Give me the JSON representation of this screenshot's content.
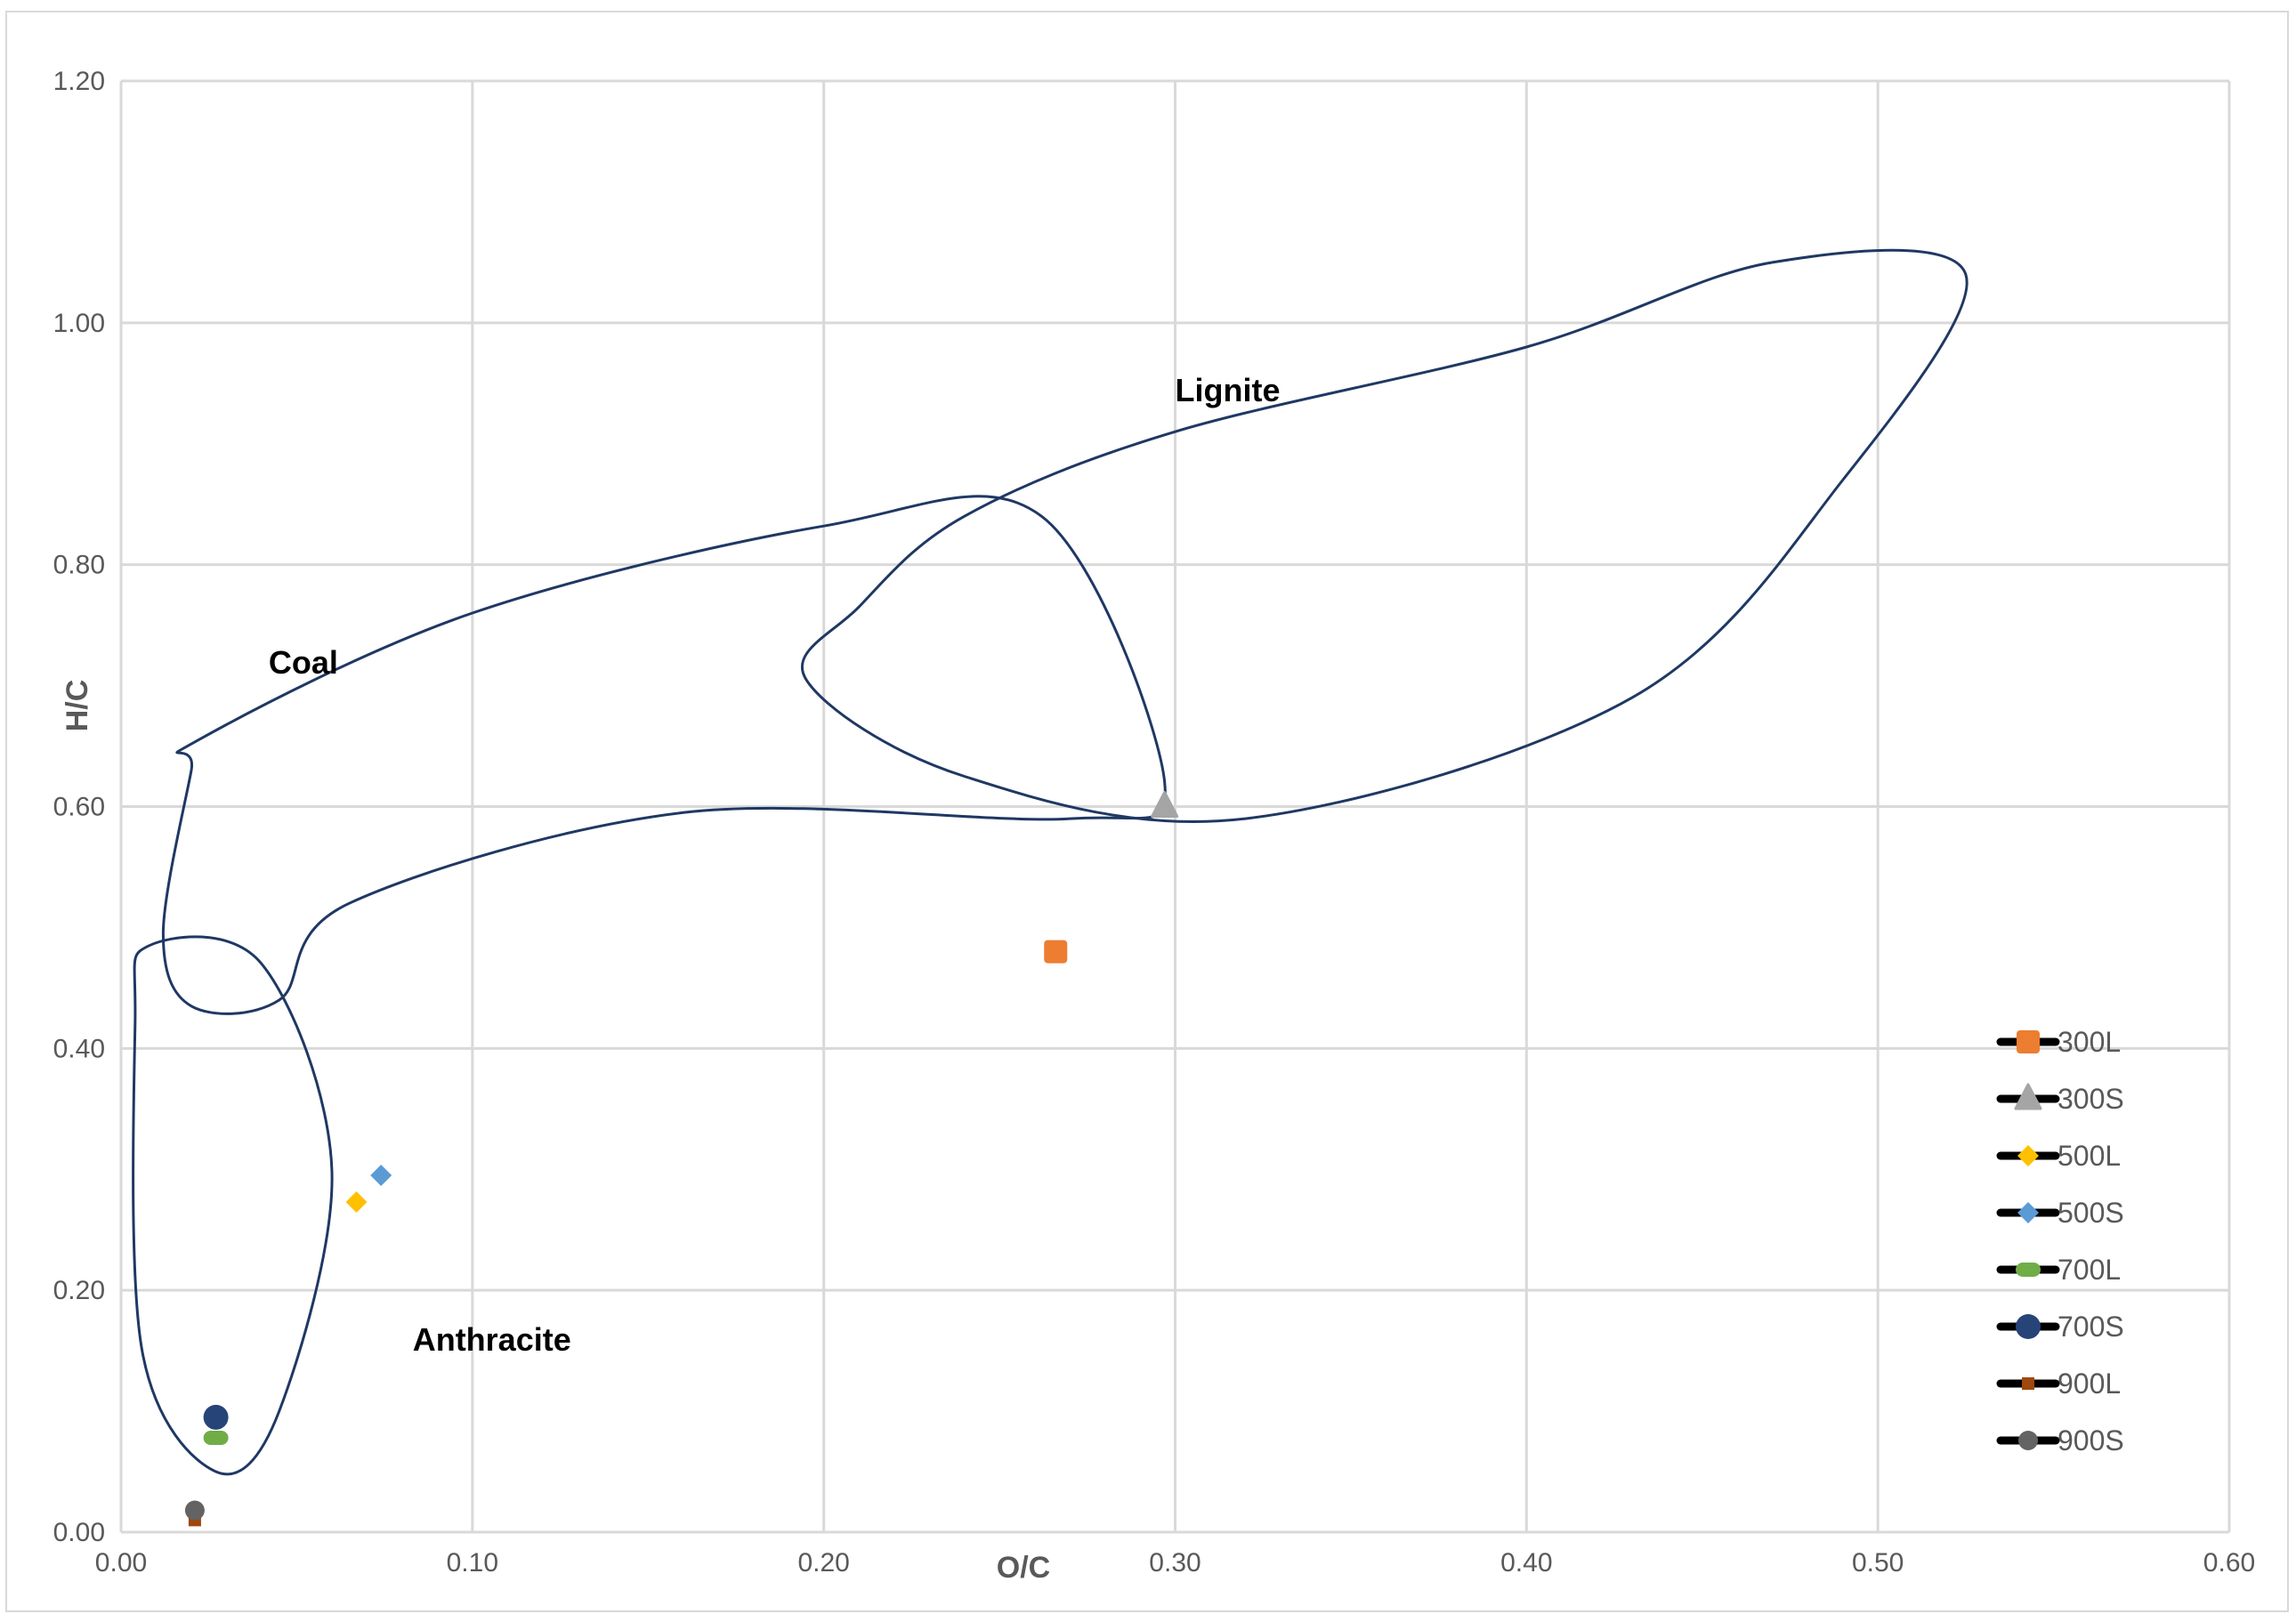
{
  "chart_data": {
    "type": "scatter",
    "title": "",
    "xlabel": "O/C",
    "ylabel": "H/C",
    "xlim": [
      0,
      0.6
    ],
    "ylim": [
      0,
      1.2
    ],
    "x_ticks": [
      "0.00",
      "0.10",
      "0.20",
      "0.30",
      "0.40",
      "0.50",
      "0.60"
    ],
    "y_ticks": [
      "0.00",
      "0.20",
      "0.40",
      "0.60",
      "0.80",
      "1.00",
      "1.20"
    ],
    "grid": true,
    "legend_position": "right",
    "series": [
      {
        "name": "300L",
        "x": 0.266,
        "y": 0.48,
        "marker": "square",
        "color": "#ed7d31"
      },
      {
        "name": "300S",
        "x": 0.297,
        "y": 0.6,
        "marker": "triangle",
        "color": "#a5a5a5"
      },
      {
        "name": "500L",
        "x": 0.067,
        "y": 0.273,
        "marker": "diamond",
        "color": "#ffc000"
      },
      {
        "name": "500S",
        "x": 0.074,
        "y": 0.295,
        "marker": "diamond",
        "color": "#5b9bd5"
      },
      {
        "name": "700L",
        "x": 0.027,
        "y": 0.078,
        "marker": "dash",
        "color": "#70ad47"
      },
      {
        "name": "700S",
        "x": 0.027,
        "y": 0.095,
        "marker": "circle",
        "color": "#264478"
      },
      {
        "name": "900L",
        "x": 0.021,
        "y": 0.01,
        "marker": "square-small",
        "color": "#9e480e"
      },
      {
        "name": "900S",
        "x": 0.021,
        "y": 0.018,
        "marker": "circle-small",
        "color": "#636363"
      }
    ],
    "regions": [
      {
        "name": "Lignite",
        "label_at": [
          0.3,
          0.935
        ],
        "points": [
          [
            0.21,
            0.765
          ],
          [
            0.24,
            0.84
          ],
          [
            0.3,
            0.91
          ],
          [
            0.4,
            0.98
          ],
          [
            0.47,
            1.05
          ],
          [
            0.525,
            1.04
          ],
          [
            0.49,
            0.87
          ],
          [
            0.43,
            0.69
          ],
          [
            0.32,
            0.59
          ],
          [
            0.24,
            0.625
          ],
          [
            0.195,
            0.705
          ]
        ]
      },
      {
        "name": "Coal",
        "label_at": [
          0.042,
          0.71
        ],
        "points": [
          [
            0.022,
            0.655
          ],
          [
            0.1,
            0.76
          ],
          [
            0.2,
            0.832
          ],
          [
            0.262,
            0.84
          ],
          [
            0.297,
            0.62
          ],
          [
            0.27,
            0.59
          ],
          [
            0.16,
            0.595
          ],
          [
            0.065,
            0.52
          ],
          [
            0.045,
            0.44
          ],
          [
            0.02,
            0.435
          ],
          [
            0.012,
            0.495
          ],
          [
            0.02,
            0.63
          ]
        ]
      },
      {
        "name": "Anthracite",
        "label_at": [
          0.083,
          0.15
        ],
        "points": [
          [
            0.008,
            0.485
          ],
          [
            0.04,
            0.47
          ],
          [
            0.06,
            0.3
          ],
          [
            0.045,
            0.1
          ],
          [
            0.027,
            0.05
          ],
          [
            0.006,
            0.15
          ],
          [
            0.004,
            0.42
          ]
        ]
      }
    ]
  }
}
